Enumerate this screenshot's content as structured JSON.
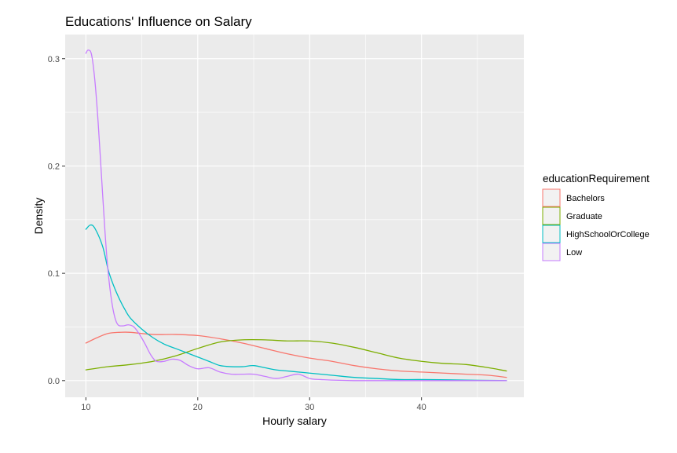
{
  "chart_data": {
    "type": "line",
    "title": "Educations' Influence on Salary",
    "xlabel": "Hourly salary",
    "ylabel": "Density",
    "xlim": [
      8.15,
      49.15
    ],
    "ylim": [
      -0.0155,
      0.3225
    ],
    "x_ticks": [
      10,
      20,
      30,
      40
    ],
    "y_ticks": [
      0.0,
      0.1,
      0.2,
      0.3
    ],
    "x_tick_labels": [
      "10",
      "20",
      "30",
      "40"
    ],
    "y_tick_labels": [
      "0.0",
      "0.1",
      "0.2",
      "0.3"
    ],
    "grid": true,
    "legend": {
      "title": "educationRequirement",
      "position": "right"
    },
    "series": [
      {
        "name": "Bachelors",
        "color": "#F8766D",
        "points": [
          [
            10,
            0.035
          ],
          [
            11,
            0.04
          ],
          [
            12,
            0.044
          ],
          [
            13,
            0.045
          ],
          [
            14,
            0.045
          ],
          [
            16,
            0.043
          ],
          [
            18,
            0.043
          ],
          [
            20,
            0.042
          ],
          [
            22,
            0.039
          ],
          [
            24,
            0.035
          ],
          [
            26,
            0.03
          ],
          [
            28,
            0.025
          ],
          [
            30,
            0.021
          ],
          [
            32,
            0.018
          ],
          [
            34,
            0.014
          ],
          [
            36,
            0.011
          ],
          [
            38,
            0.009
          ],
          [
            40,
            0.008
          ],
          [
            42,
            0.007
          ],
          [
            44,
            0.006
          ],
          [
            46,
            0.005
          ],
          [
            47.6,
            0.003
          ]
        ]
      },
      {
        "name": "Graduate",
        "color": "#7CAE00",
        "points": [
          [
            10,
            0.01
          ],
          [
            12,
            0.013
          ],
          [
            14,
            0.015
          ],
          [
            16,
            0.018
          ],
          [
            18,
            0.023
          ],
          [
            20,
            0.03
          ],
          [
            22,
            0.036
          ],
          [
            24,
            0.038
          ],
          [
            26,
            0.038
          ],
          [
            28,
            0.037
          ],
          [
            30,
            0.037
          ],
          [
            32,
            0.035
          ],
          [
            34,
            0.031
          ],
          [
            36,
            0.026
          ],
          [
            38,
            0.021
          ],
          [
            40,
            0.018
          ],
          [
            42,
            0.016
          ],
          [
            44,
            0.015
          ],
          [
            46,
            0.012
          ],
          [
            47.6,
            0.009
          ]
        ]
      },
      {
        "name": "HighSchoolOrCollege",
        "color": "#00BFC4",
        "points": [
          [
            10,
            0.141
          ],
          [
            10.4,
            0.145
          ],
          [
            10.8,
            0.142
          ],
          [
            11.5,
            0.125
          ],
          [
            12,
            0.103
          ],
          [
            12.5,
            0.088
          ],
          [
            13,
            0.076
          ],
          [
            13.5,
            0.066
          ],
          [
            14,
            0.058
          ],
          [
            15,
            0.048
          ],
          [
            16,
            0.04
          ],
          [
            17,
            0.034
          ],
          [
            18,
            0.03
          ],
          [
            19,
            0.026
          ],
          [
            20,
            0.022
          ],
          [
            21,
            0.018
          ],
          [
            22,
            0.014
          ],
          [
            23,
            0.013
          ],
          [
            24,
            0.013
          ],
          [
            25,
            0.014
          ],
          [
            26,
            0.012
          ],
          [
            27,
            0.01
          ],
          [
            28,
            0.009
          ],
          [
            29,
            0.008
          ],
          [
            30,
            0.007
          ],
          [
            32,
            0.005
          ],
          [
            34,
            0.003
          ],
          [
            36,
            0.002
          ],
          [
            38,
            0.001
          ],
          [
            40,
            0.001
          ],
          [
            44,
            0.0005
          ],
          [
            47.6,
            0.0
          ]
        ]
      },
      {
        "name": "Low",
        "color": "#C77CFF",
        "points": [
          [
            10,
            0.305
          ],
          [
            10.2,
            0.308
          ],
          [
            10.5,
            0.304
          ],
          [
            10.8,
            0.28
          ],
          [
            11.1,
            0.24
          ],
          [
            11.4,
            0.19
          ],
          [
            11.7,
            0.14
          ],
          [
            12.0,
            0.1
          ],
          [
            12.4,
            0.068
          ],
          [
            12.8,
            0.053
          ],
          [
            13.3,
            0.051
          ],
          [
            13.8,
            0.052
          ],
          [
            14.3,
            0.05
          ],
          [
            14.8,
            0.043
          ],
          [
            15.3,
            0.034
          ],
          [
            15.8,
            0.024
          ],
          [
            16.3,
            0.018
          ],
          [
            17,
            0.018
          ],
          [
            17.7,
            0.02
          ],
          [
            18.4,
            0.019
          ],
          [
            19.2,
            0.014
          ],
          [
            20,
            0.011
          ],
          [
            21,
            0.012
          ],
          [
            22,
            0.008
          ],
          [
            23,
            0.006
          ],
          [
            24,
            0.006
          ],
          [
            25,
            0.006
          ],
          [
            26,
            0.004
          ],
          [
            27,
            0.002
          ],
          [
            28,
            0.004
          ],
          [
            29,
            0.006
          ],
          [
            30,
            0.002
          ],
          [
            31,
            0.001
          ],
          [
            34,
            0.0
          ],
          [
            40,
            0.0
          ],
          [
            47.6,
            0.0
          ]
        ]
      }
    ]
  }
}
